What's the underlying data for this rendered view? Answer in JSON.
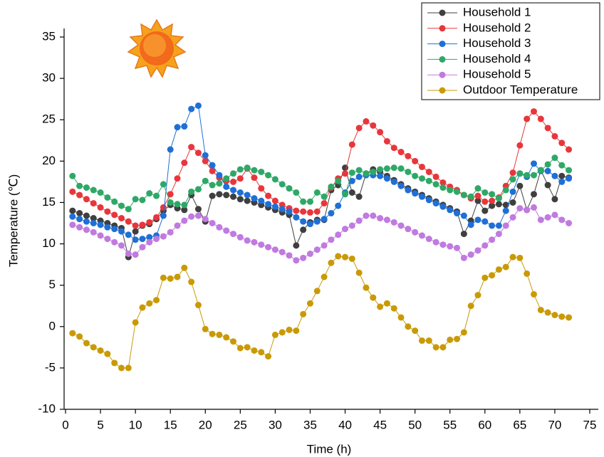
{
  "chart_data": {
    "type": "line",
    "x_label": "Time (h)",
    "y_label": "Temperature (℃)",
    "x": [
      1,
      2,
      3,
      4,
      5,
      6,
      7,
      8,
      9,
      10,
      11,
      12,
      13,
      14,
      15,
      16,
      17,
      18,
      19,
      20,
      21,
      22,
      23,
      24,
      25,
      26,
      27,
      28,
      29,
      30,
      31,
      32,
      33,
      34,
      35,
      36,
      37,
      38,
      39,
      40,
      41,
      42,
      43,
      44,
      45,
      46,
      47,
      48,
      49,
      50,
      51,
      52,
      53,
      54,
      55,
      56,
      57,
      58,
      59,
      60,
      61,
      62,
      63,
      64,
      65,
      66,
      67,
      68,
      69,
      70,
      71,
      72
    ],
    "xlim": [
      0,
      75
    ],
    "xticks": [
      0,
      5,
      10,
      15,
      20,
      25,
      30,
      35,
      40,
      45,
      50,
      55,
      60,
      65,
      70,
      75
    ],
    "ylim": [
      -10,
      35
    ],
    "yticks": [
      -10,
      -5,
      0,
      5,
      10,
      15,
      20,
      25,
      30,
      35
    ],
    "legend": "upper right",
    "series": [
      {
        "name": "Household 1",
        "color": "#3f3f3f",
        "values": [
          14.0,
          13.7,
          13.4,
          13.1,
          12.8,
          12.5,
          12.2,
          11.9,
          8.4,
          11.5,
          12.2,
          12.4,
          13.0,
          14.0,
          14.7,
          14.3,
          14.1,
          15.9,
          14.2,
          12.7,
          15.8,
          16.0,
          15.9,
          15.7,
          15.4,
          15.2,
          15.0,
          14.7,
          14.4,
          14.1,
          13.8,
          13.5,
          9.8,
          11.7,
          12.6,
          12.9,
          12.9,
          16.5,
          17.1,
          19.2,
          16.2,
          15.7,
          18.5,
          19.0,
          18.7,
          18.2,
          17.7,
          17.2,
          16.7,
          16.3,
          15.9,
          15.5,
          15.1,
          14.7,
          14.3,
          13.9,
          11.2,
          12.8,
          15.2,
          14.0,
          14.6,
          14.8,
          14.7,
          15.0,
          17.0,
          14.1,
          16.0,
          18.9,
          17.1,
          15.4,
          18.2,
          18.0
        ]
      },
      {
        "name": "Household 2",
        "color": "#e8363b",
        "values": [
          16.3,
          15.9,
          15.4,
          14.9,
          14.4,
          13.9,
          13.5,
          13.1,
          12.7,
          12.2,
          12.3,
          12.6,
          13.2,
          14.4,
          16.0,
          17.9,
          19.8,
          21.7,
          21.0,
          20.0,
          18.8,
          18.0,
          17.6,
          17.5,
          17.9,
          19.1,
          18.0,
          16.7,
          15.8,
          15.2,
          14.7,
          14.3,
          14.0,
          13.9,
          13.8,
          13.9,
          14.9,
          16.8,
          17.9,
          18.5,
          22.0,
          24.0,
          24.8,
          24.3,
          23.5,
          22.4,
          21.6,
          21.1,
          20.6,
          20.0,
          19.3,
          18.7,
          18.1,
          17.4,
          16.9,
          16.5,
          15.9,
          15.5,
          15.8,
          15.1,
          15.2,
          15.6,
          17.0,
          18.6,
          21.9,
          25.1,
          26.0,
          25.1,
          24.0,
          23.0,
          22.2,
          21.4
        ]
      },
      {
        "name": "Household 3",
        "color": "#1f6fd6",
        "values": [
          13.3,
          13.0,
          12.7,
          12.5,
          12.3,
          12.0,
          11.8,
          11.5,
          11.1,
          10.5,
          10.6,
          10.8,
          11.0,
          13.4,
          21.4,
          24.1,
          24.2,
          26.3,
          26.7,
          20.7,
          19.5,
          18.3,
          16.9,
          16.5,
          16.2,
          15.9,
          15.5,
          15.2,
          14.8,
          14.5,
          14.2,
          13.9,
          13.2,
          12.7,
          12.4,
          12.7,
          13.0,
          13.7,
          14.6,
          16.2,
          17.6,
          18.1,
          18.3,
          18.3,
          18.2,
          17.9,
          17.5,
          17.0,
          16.5,
          16.1,
          15.7,
          15.3,
          14.9,
          14.5,
          14.1,
          13.7,
          13.4,
          12.3,
          12.9,
          12.7,
          12.2,
          12.2,
          14.0,
          16.3,
          18.5,
          18.1,
          19.7,
          18.8,
          18.8,
          18.2,
          17.5,
          17.9
        ]
      },
      {
        "name": "Household 4",
        "color": "#2ea867",
        "values": [
          18.2,
          17.0,
          16.8,
          16.5,
          16.2,
          15.6,
          15.1,
          14.6,
          14.2,
          15.4,
          15.3,
          16.1,
          15.8,
          17.2,
          15.0,
          14.8,
          14.7,
          16.3,
          16.6,
          17.6,
          17.1,
          17.3,
          17.9,
          18.5,
          19.0,
          19.2,
          18.9,
          18.7,
          18.3,
          17.8,
          17.2,
          16.7,
          16.2,
          15.1,
          15.1,
          16.2,
          15.7,
          16.9,
          17.6,
          16.0,
          18.6,
          18.9,
          18.5,
          18.7,
          19.0,
          19.1,
          19.2,
          19.1,
          18.7,
          18.2,
          17.9,
          17.6,
          17.2,
          16.8,
          16.5,
          16.3,
          15.9,
          15.7,
          16.7,
          16.2,
          16.0,
          15.5,
          16.5,
          17.8,
          18.5,
          18.3,
          18.3,
          18.9,
          19.6,
          20.4,
          19.5,
          18.9
        ]
      },
      {
        "name": "Household 5",
        "color": "#c07ae0",
        "values": [
          12.3,
          12.0,
          11.7,
          11.4,
          11.0,
          10.6,
          10.2,
          9.8,
          8.8,
          8.7,
          9.6,
          10.2,
          10.6,
          10.9,
          11.4,
          12.2,
          12.8,
          13.3,
          13.4,
          13.0,
          12.5,
          12.0,
          11.6,
          11.2,
          10.8,
          10.4,
          10.2,
          9.9,
          9.6,
          9.3,
          9.0,
          8.6,
          8.0,
          8.3,
          8.8,
          9.3,
          9.8,
          10.5,
          11.1,
          11.8,
          12.2,
          12.8,
          13.4,
          13.4,
          13.1,
          12.9,
          12.6,
          12.2,
          11.8,
          11.4,
          11.0,
          10.6,
          10.2,
          9.9,
          9.7,
          9.5,
          8.3,
          8.7,
          9.2,
          9.8,
          10.5,
          11.2,
          12.2,
          13.2,
          14.3,
          14.1,
          14.4,
          12.9,
          13.2,
          13.5,
          12.9,
          12.5
        ]
      },
      {
        "name": "Outdoor Temperature",
        "color": "#c99a06",
        "values": [
          -0.8,
          -1.2,
          -2.0,
          -2.5,
          -2.9,
          -3.3,
          -4.4,
          -5.0,
          -5.0,
          0.5,
          2.3,
          2.8,
          3.2,
          5.9,
          5.8,
          6.0,
          7.1,
          5.4,
          2.6,
          -0.3,
          -0.9,
          -1.0,
          -1.3,
          -1.8,
          -2.6,
          -2.5,
          -2.9,
          -3.1,
          -3.6,
          -1.0,
          -0.7,
          -0.4,
          -0.5,
          1.5,
          2.8,
          4.3,
          6.0,
          7.7,
          8.5,
          8.4,
          8.2,
          6.5,
          4.7,
          3.5,
          2.4,
          2.8,
          2.2,
          1.1,
          0.0,
          -0.5,
          -1.7,
          -1.7,
          -2.5,
          -2.5,
          -1.6,
          -1.5,
          -0.7,
          2.5,
          3.8,
          5.9,
          6.2,
          6.9,
          7.2,
          8.4,
          8.3,
          6.4,
          3.9,
          2.0,
          1.7,
          1.4,
          1.2,
          1.1
        ]
      }
    ]
  }
}
